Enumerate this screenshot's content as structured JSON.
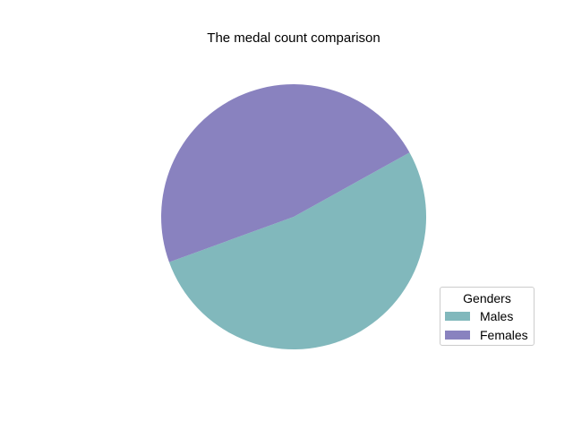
{
  "chart_data": {
    "type": "pie",
    "title": "The medal count comparison",
    "legend_title": "Genders",
    "legend_position": "lower-right",
    "start_angle": 200,
    "slices": [
      {
        "label": "Males",
        "value": 52.5,
        "color": "#81b8bc"
      },
      {
        "label": "Females",
        "value": 47.5,
        "color": "#8982bf"
      }
    ]
  }
}
